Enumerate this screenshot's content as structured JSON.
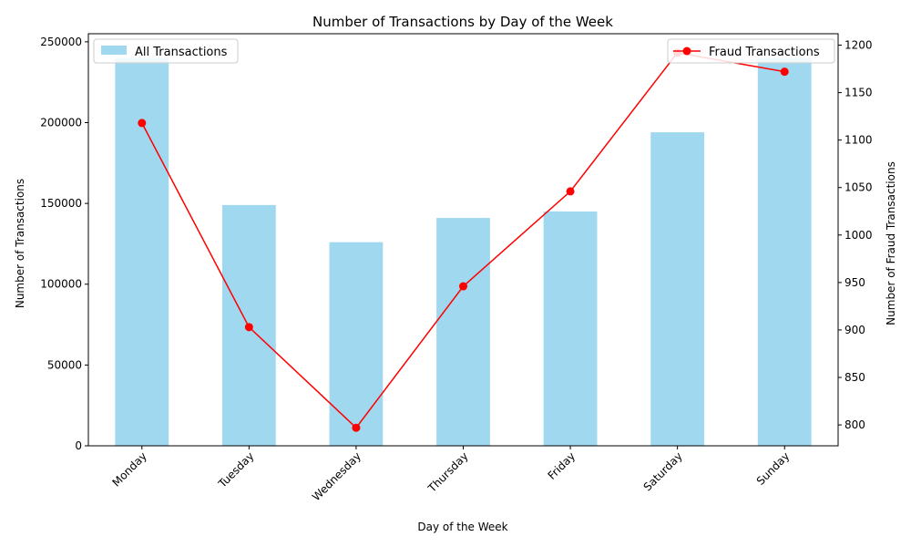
{
  "chart_data": {
    "type": "bar",
    "title": "Number of Transactions by Day of the Week",
    "xlabel": "Day of the Week",
    "ylabel": "Number of Transactions",
    "y2label": "Number of Fraud Transactions",
    "categories": [
      "Monday",
      "Tuesday",
      "Wednesday",
      "Thursday",
      "Friday",
      "Saturday",
      "Sunday"
    ],
    "series": [
      {
        "name": "All Transactions",
        "type": "bar",
        "axis": "left",
        "color": "#87ceeb",
        "values": [
          240000,
          149000,
          126000,
          141000,
          145000,
          194000,
          240000
        ]
      },
      {
        "name": "Fraud Transactions",
        "type": "line",
        "axis": "right",
        "color": "#ff0000",
        "marker": "circle",
        "values": [
          1118,
          903,
          797,
          946,
          1046,
          1192,
          1172
        ]
      }
    ],
    "ylim": [
      0,
      255000
    ],
    "yticks": [
      0,
      50000,
      100000,
      150000,
      200000,
      250000
    ],
    "y2lim": [
      778,
      1212
    ],
    "y2ticks": [
      800,
      850,
      900,
      950,
      1000,
      1050,
      1100,
      1150,
      1200
    ],
    "legend_left": "upper-left",
    "legend_right": "upper-right",
    "grid": false,
    "x_tick_rotation": 45
  }
}
